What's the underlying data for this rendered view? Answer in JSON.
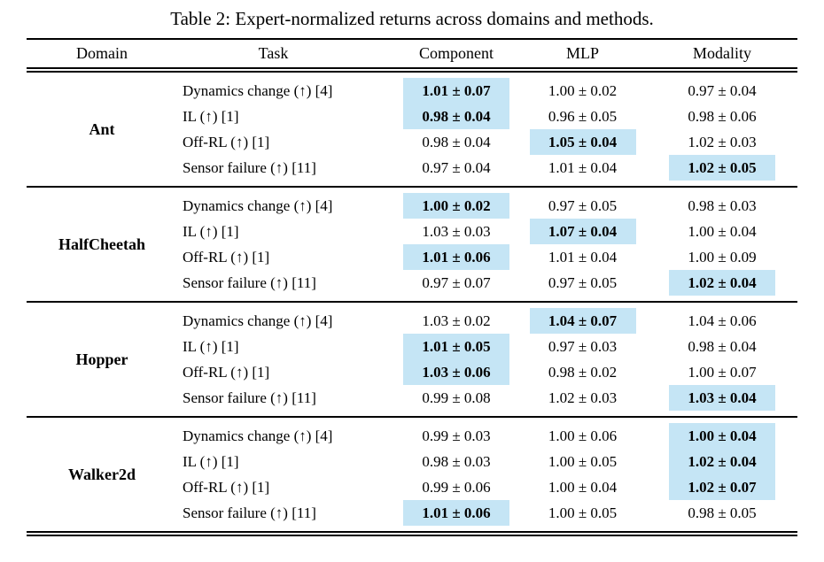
{
  "title": "Table 2: Expert-normalized returns across domains and methods.",
  "highlight_color": "#c5e5f5",
  "columns": {
    "domain": "Domain",
    "task": "Task",
    "methods": [
      "Component",
      "MLP",
      "Modality"
    ]
  },
  "sections": [
    {
      "domain": "Ant",
      "rows": [
        {
          "task": "Dynamics change (↑) [4]",
          "values": [
            {
              "text": "1.01 ± 0.07",
              "best": true
            },
            {
              "text": "1.00 ± 0.02",
              "best": false
            },
            {
              "text": "0.97 ± 0.04",
              "best": false
            }
          ]
        },
        {
          "task": "IL (↑) [1]",
          "values": [
            {
              "text": "0.98 ± 0.04",
              "best": true
            },
            {
              "text": "0.96 ± 0.05",
              "best": false
            },
            {
              "text": "0.98 ± 0.06",
              "best": false
            }
          ]
        },
        {
          "task": "Off-RL (↑) [1]",
          "values": [
            {
              "text": "0.98 ± 0.04",
              "best": false
            },
            {
              "text": "1.05 ± 0.04",
              "best": true
            },
            {
              "text": "1.02 ± 0.03",
              "best": false
            }
          ]
        },
        {
          "task": "Sensor failure (↑) [11]",
          "values": [
            {
              "text": "0.97 ± 0.04",
              "best": false
            },
            {
              "text": "1.01 ± 0.04",
              "best": false
            },
            {
              "text": "1.02 ± 0.05",
              "best": true
            }
          ]
        }
      ]
    },
    {
      "domain": "HalfCheetah",
      "rows": [
        {
          "task": "Dynamics change (↑) [4]",
          "values": [
            {
              "text": "1.00 ± 0.02",
              "best": true
            },
            {
              "text": "0.97 ± 0.05",
              "best": false
            },
            {
              "text": "0.98 ± 0.03",
              "best": false
            }
          ]
        },
        {
          "task": "IL (↑) [1]",
          "values": [
            {
              "text": "1.03 ± 0.03",
              "best": false
            },
            {
              "text": "1.07 ± 0.04",
              "best": true
            },
            {
              "text": "1.00 ± 0.04",
              "best": false
            }
          ]
        },
        {
          "task": "Off-RL (↑) [1]",
          "values": [
            {
              "text": "1.01 ± 0.06",
              "best": true
            },
            {
              "text": "1.01 ± 0.04",
              "best": false
            },
            {
              "text": "1.00 ± 0.09",
              "best": false
            }
          ]
        },
        {
          "task": "Sensor failure (↑) [11]",
          "values": [
            {
              "text": "0.97 ± 0.07",
              "best": false
            },
            {
              "text": "0.97 ± 0.05",
              "best": false
            },
            {
              "text": "1.02 ± 0.04",
              "best": true
            }
          ]
        }
      ]
    },
    {
      "domain": "Hopper",
      "rows": [
        {
          "task": "Dynamics change (↑) [4]",
          "values": [
            {
              "text": "1.03 ± 0.02",
              "best": false
            },
            {
              "text": "1.04 ± 0.07",
              "best": true
            },
            {
              "text": "1.04 ± 0.06",
              "best": false
            }
          ]
        },
        {
          "task": "IL (↑) [1]",
          "values": [
            {
              "text": "1.01 ± 0.05",
              "best": true
            },
            {
              "text": "0.97 ± 0.03",
              "best": false
            },
            {
              "text": "0.98 ± 0.04",
              "best": false
            }
          ]
        },
        {
          "task": "Off-RL (↑) [1]",
          "values": [
            {
              "text": "1.03 ± 0.06",
              "best": true
            },
            {
              "text": "0.98 ± 0.02",
              "best": false
            },
            {
              "text": "1.00 ± 0.07",
              "best": false
            }
          ]
        },
        {
          "task": "Sensor failure (↑) [11]",
          "values": [
            {
              "text": "0.99 ± 0.08",
              "best": false
            },
            {
              "text": "1.02 ± 0.03",
              "best": false
            },
            {
              "text": "1.03 ± 0.04",
              "best": true
            }
          ]
        }
      ]
    },
    {
      "domain": "Walker2d",
      "rows": [
        {
          "task": "Dynamics change (↑) [4]",
          "values": [
            {
              "text": "0.99 ± 0.03",
              "best": false
            },
            {
              "text": "1.00 ± 0.06",
              "best": false
            },
            {
              "text": "1.00 ± 0.04",
              "best": true
            }
          ]
        },
        {
          "task": "IL (↑) [1]",
          "values": [
            {
              "text": "0.98 ± 0.03",
              "best": false
            },
            {
              "text": "1.00 ± 0.05",
              "best": false
            },
            {
              "text": "1.02 ± 0.04",
              "best": true
            }
          ]
        },
        {
          "task": "Off-RL (↑) [1]",
          "values": [
            {
              "text": "0.99 ± 0.06",
              "best": false
            },
            {
              "text": "1.00 ± 0.04",
              "best": false
            },
            {
              "text": "1.02 ± 0.07",
              "best": true
            }
          ]
        },
        {
          "task": "Sensor failure (↑) [11]",
          "values": [
            {
              "text": "1.01 ± 0.06",
              "best": true
            },
            {
              "text": "1.00 ± 0.05",
              "best": false
            },
            {
              "text": "0.98 ± 0.05",
              "best": false
            }
          ]
        }
      ]
    }
  ]
}
